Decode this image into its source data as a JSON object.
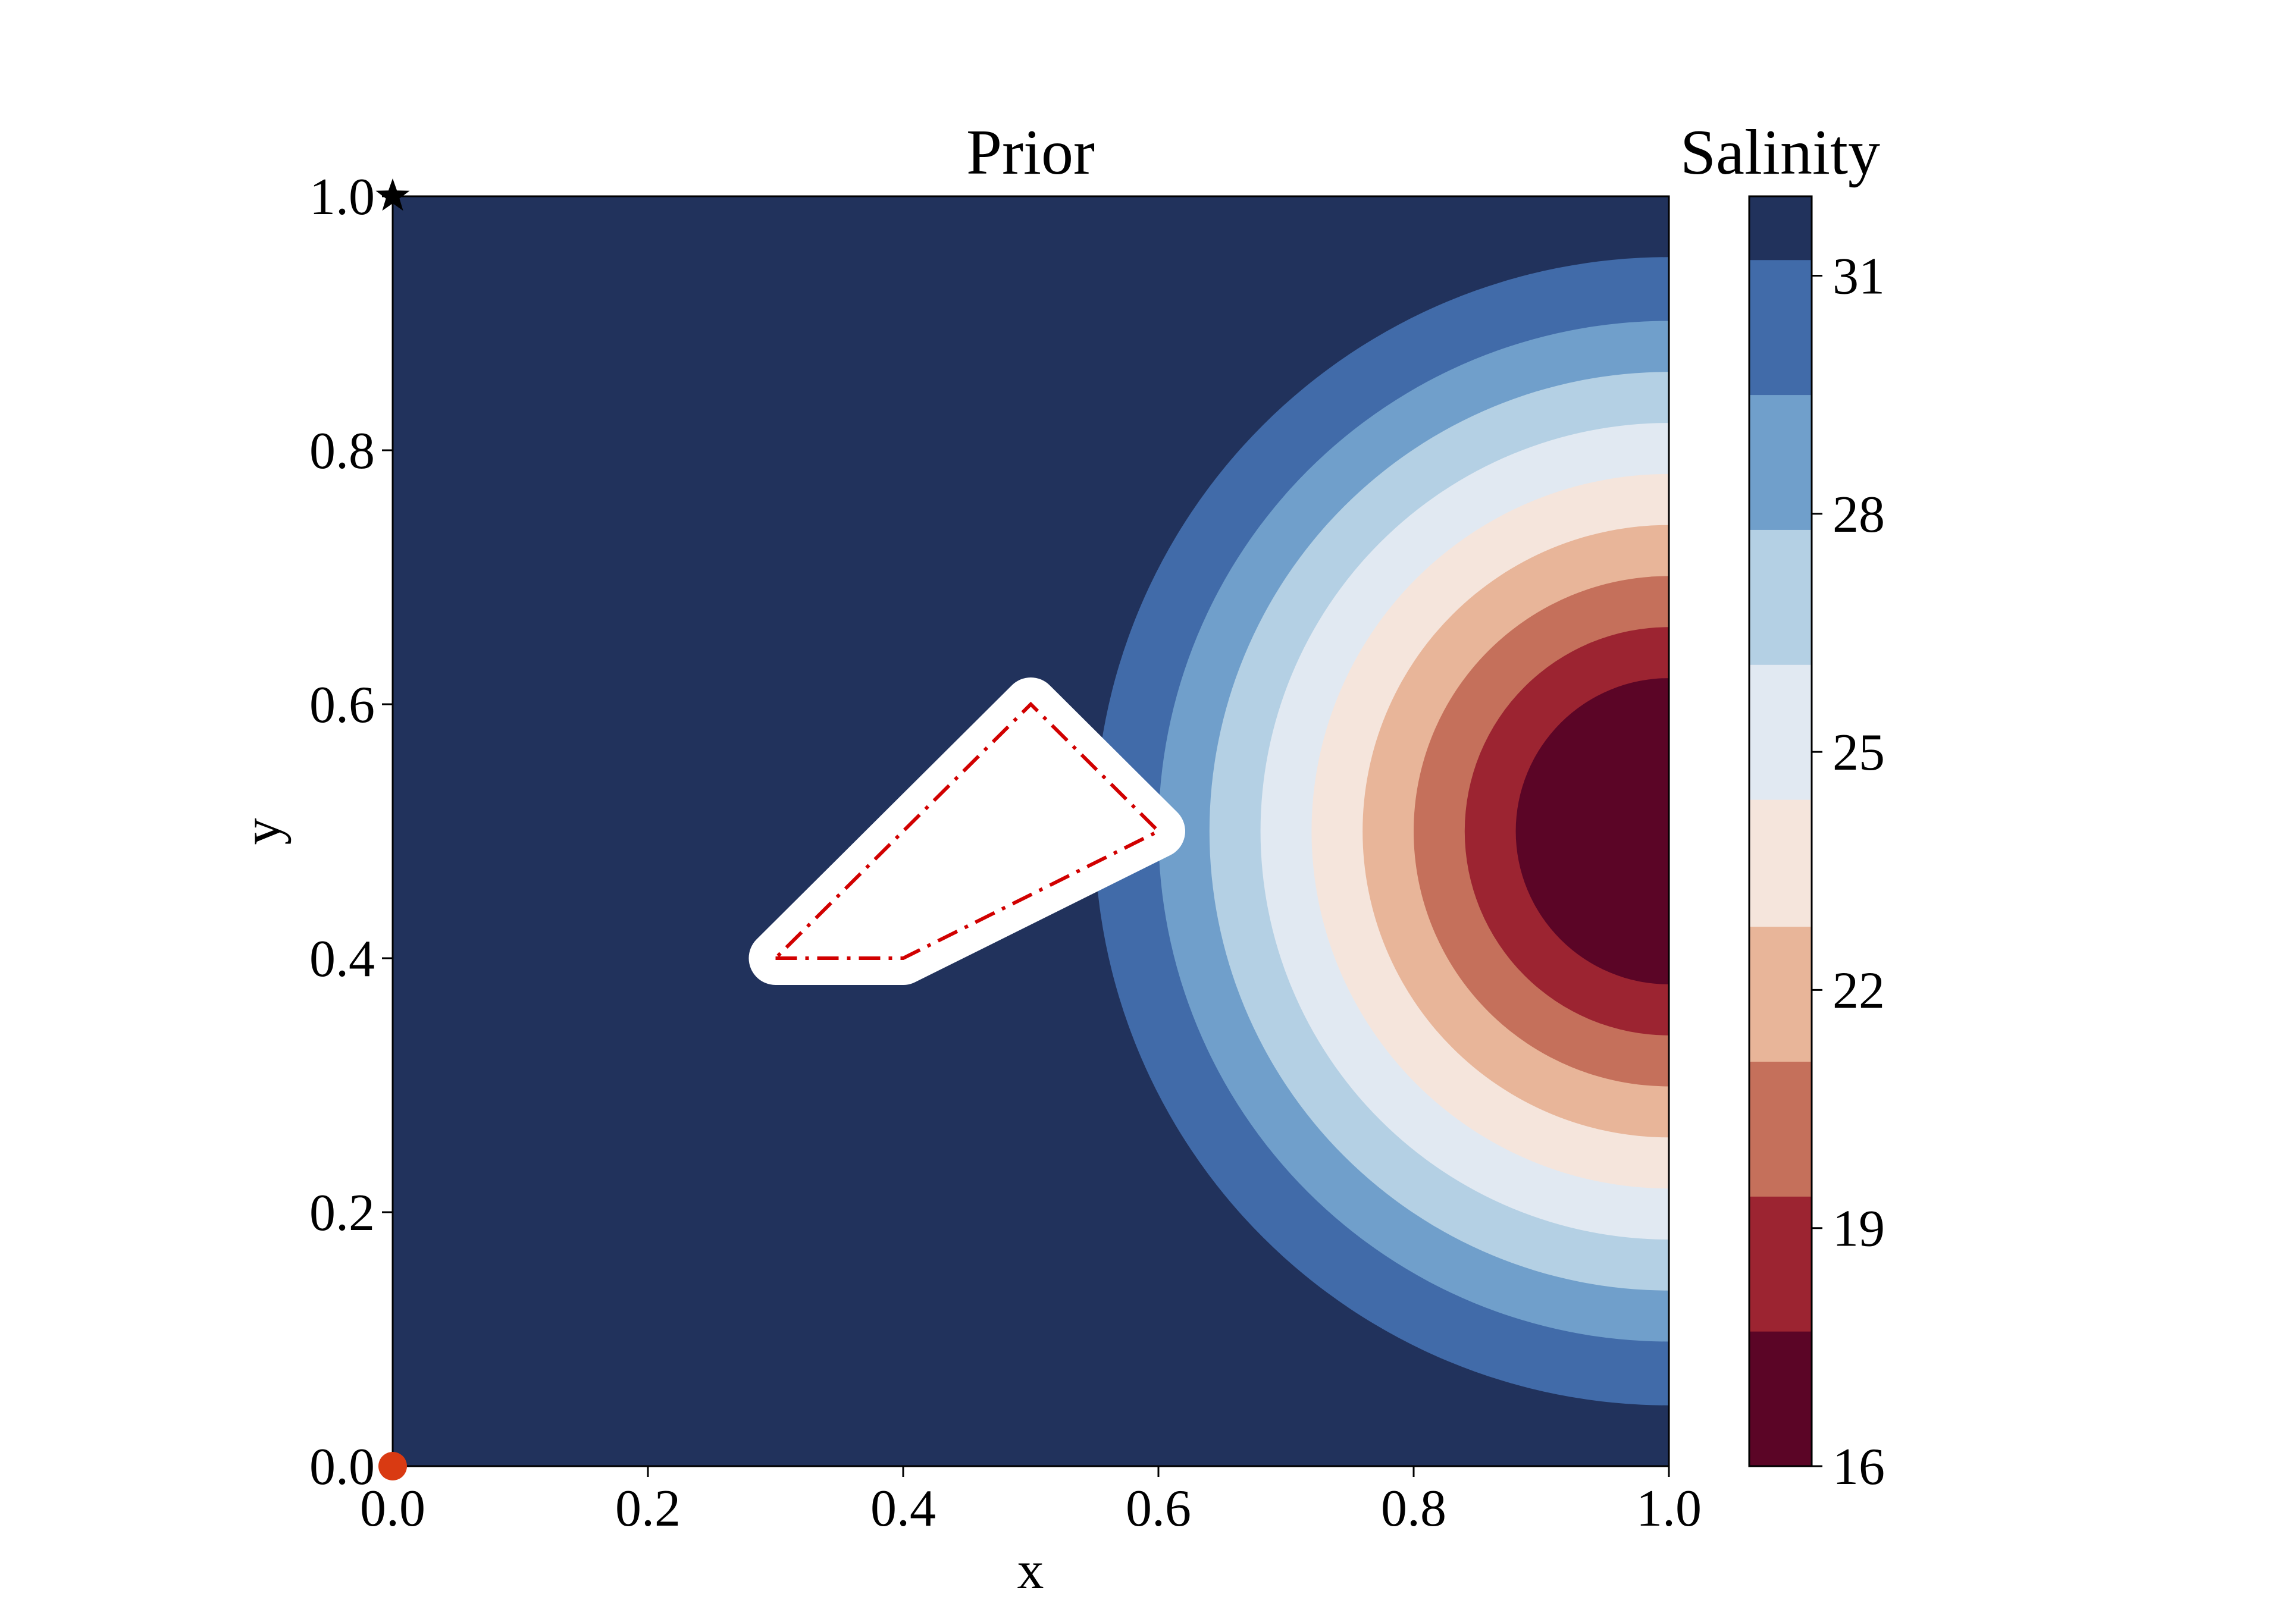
{
  "chart_data": {
    "type": "heatmap",
    "title": "Prior",
    "xlabel": "x",
    "ylabel": "y",
    "xlim": [
      0.0,
      1.0
    ],
    "ylim": [
      0.0,
      1.0
    ],
    "xticks": [
      {
        "value": 0.0,
        "label": "0.0"
      },
      {
        "value": 0.2,
        "label": "0.2"
      },
      {
        "value": 0.4,
        "label": "0.4"
      },
      {
        "value": 0.6,
        "label": "0.6"
      },
      {
        "value": 0.8,
        "label": "0.8"
      },
      {
        "value": 1.0,
        "label": "1.0"
      }
    ],
    "yticks": [
      {
        "value": 0.0,
        "label": "0.0"
      },
      {
        "value": 0.2,
        "label": "0.2"
      },
      {
        "value": 0.4,
        "label": "0.4"
      },
      {
        "value": 0.6,
        "label": "0.6"
      },
      {
        "value": 0.8,
        "label": "0.8"
      },
      {
        "value": 1.0,
        "label": "1.0"
      }
    ],
    "grid": false,
    "field": {
      "source_center": [
        1.0,
        0.5
      ],
      "levels_outer_radius": [
        0.12,
        0.16,
        0.2,
        0.24,
        0.28,
        0.32,
        0.36,
        0.4,
        0.45
      ]
    },
    "colorbar": {
      "label": "Salinity",
      "range": [
        16,
        32
      ],
      "levels": [
        {
          "from": 16.0,
          "to": 17.7,
          "color": "#5b0526"
        },
        {
          "from": 17.7,
          "to": 19.4,
          "color": "#9c2431"
        },
        {
          "from": 19.4,
          "to": 21.1,
          "color": "#c5705b"
        },
        {
          "from": 21.1,
          "to": 22.8,
          "color": "#e8b599"
        },
        {
          "from": 22.8,
          "to": 24.4,
          "color": "#f5e5dc"
        },
        {
          "from": 24.4,
          "to": 26.1,
          "color": "#e1e9f2"
        },
        {
          "from": 26.1,
          "to": 27.8,
          "color": "#b4d0e4"
        },
        {
          "from": 27.8,
          "to": 29.5,
          "color": "#709fcb"
        },
        {
          "from": 29.5,
          "to": 31.2,
          "color": "#416ba9"
        },
        {
          "from": 31.2,
          "to": 32.0,
          "color": "#21325c"
        }
      ],
      "ticks": [
        {
          "value": 16,
          "label": "16"
        },
        {
          "value": 19,
          "label": "19"
        },
        {
          "value": 22,
          "label": "22"
        },
        {
          "value": 25,
          "label": "25"
        },
        {
          "value": 28,
          "label": "28"
        },
        {
          "value": 31,
          "label": "31"
        }
      ]
    },
    "obstacle": {
      "polygon": [
        [
          0.3,
          0.4
        ],
        [
          0.4,
          0.4
        ],
        [
          0.6,
          0.5
        ],
        [
          0.5,
          0.6
        ],
        [
          0.3,
          0.4
        ]
      ],
      "line_color": "#d10000",
      "line_style": "dash-dot",
      "fill": "#ffffff"
    },
    "markers": [
      {
        "name": "start",
        "x": 0.0,
        "y": 0.0,
        "shape": "circle",
        "color": "#d93a12"
      },
      {
        "name": "target",
        "x": 0.0,
        "y": 1.0,
        "shape": "star",
        "color": "#000000"
      }
    ]
  }
}
